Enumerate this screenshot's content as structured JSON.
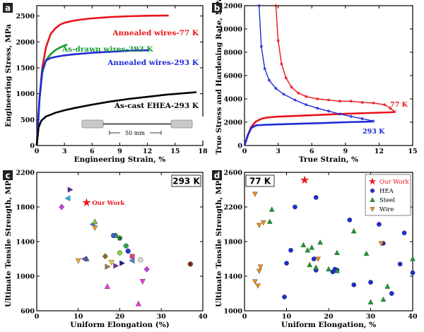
{
  "chart_data": [
    {
      "panel": "a",
      "type": "line",
      "xlabel": "Engineering Strain, %",
      "ylabel": "Engineering Stress, MPa",
      "xlim": [
        0,
        18
      ],
      "ylim": [
        0,
        2700
      ],
      "xticks": [
        0,
        3,
        6,
        9,
        12,
        15,
        18
      ],
      "yticks": [
        0,
        500,
        1000,
        1500,
        2000,
        2500
      ],
      "inset_label": "50 mm",
      "series": [
        {
          "name": "Annealed wires-77 K",
          "color": "#e8131b",
          "x": [
            0,
            0.3,
            0.6,
            1.0,
            1.5,
            2.0,
            2.5,
            3.0,
            4,
            5,
            6,
            8,
            10,
            12,
            14.3
          ],
          "y": [
            0,
            900,
            1500,
            1900,
            2150,
            2260,
            2330,
            2370,
            2410,
            2435,
            2455,
            2480,
            2495,
            2505,
            2510
          ]
        },
        {
          "name": "As-drawn wires-293 K",
          "color": "#169c2d",
          "x": [
            0,
            0.3,
            0.6,
            1.0,
            1.5,
            2.0,
            2.5,
            3.0,
            3.3
          ],
          "y": [
            0,
            900,
            1400,
            1650,
            1760,
            1840,
            1890,
            1930,
            1950
          ]
        },
        {
          "name": "Annealed wires-293 K",
          "color": "#1f2bd6",
          "x": [
            0,
            0.3,
            0.6,
            1.0,
            1.5,
            2.0,
            3.0,
            4,
            6,
            8,
            10,
            12.2
          ],
          "y": [
            0,
            900,
            1450,
            1640,
            1690,
            1710,
            1740,
            1760,
            1790,
            1810,
            1830,
            1840
          ]
        },
        {
          "name": "As-cast EHEA-293 K",
          "color": "#000000",
          "x": [
            0,
            0.2,
            0.5,
            1.0,
            2,
            3,
            4,
            6,
            8,
            10,
            12,
            14,
            16,
            17.3
          ],
          "y": [
            0,
            350,
            480,
            560,
            630,
            680,
            720,
            790,
            850,
            900,
            940,
            980,
            1010,
            1030
          ]
        }
      ]
    },
    {
      "panel": "b",
      "type": "line",
      "xlabel": "True Strain, %",
      "ylabel": "True Stress and Hardening Rate, MPa",
      "xlim": [
        0,
        15
      ],
      "ylim": [
        0,
        12000
      ],
      "xticks": [
        0,
        3,
        6,
        9,
        12,
        15
      ],
      "yticks": [
        0,
        2000,
        4000,
        6000,
        8000,
        10000,
        12000
      ],
      "series": [
        {
          "name": "77 K",
          "kind": "true-stress",
          "color": "#e8131b",
          "x": [
            0,
            0.3,
            0.6,
            1.0,
            1.5,
            2,
            3,
            5,
            7,
            9,
            11,
            13,
            13.4
          ],
          "y": [
            0,
            900,
            1600,
            2050,
            2300,
            2400,
            2480,
            2560,
            2640,
            2720,
            2790,
            2850,
            2870
          ]
        },
        {
          "name": "293 K",
          "kind": "true-stress",
          "color": "#1f2bd6",
          "x": [
            0,
            0.3,
            0.6,
            1.0,
            1.5,
            2,
            3,
            5,
            7,
            9,
            11.5
          ],
          "y": [
            0,
            900,
            1500,
            1720,
            1760,
            1780,
            1810,
            1870,
            1930,
            2000,
            2060
          ]
        },
        {
          "name": "77 K",
          "kind": "hardening-rate",
          "color": "#e8131b",
          "x": [
            2.8,
            3.0,
            3.3,
            3.7,
            4.2,
            4.8,
            5.5,
            6.5,
            7.5,
            8.5,
            9.5,
            10.5,
            11.5,
            12.5,
            13.0,
            13.4
          ],
          "y": [
            12000,
            9000,
            7000,
            5800,
            5000,
            4500,
            4200,
            4000,
            3900,
            3800,
            3800,
            3700,
            3650,
            3500,
            3200,
            2900
          ]
        },
        {
          "name": "293 K",
          "kind": "hardening-rate",
          "color": "#1f2bd6",
          "x": [
            1.3,
            1.5,
            1.8,
            2.2,
            2.8,
            3.5,
            4.5,
            5.5,
            6.5,
            7.5,
            8.5,
            9.5,
            10.5,
            11.5
          ],
          "y": [
            12000,
            8500,
            6600,
            5600,
            4900,
            4400,
            3900,
            3500,
            3200,
            2950,
            2700,
            2500,
            2300,
            2100
          ]
        }
      ]
    },
    {
      "panel": "c",
      "type": "scatter",
      "tag": "293 K",
      "xlabel": "Uniform Elongation (%)",
      "ylabel": "Ultimate Tensile Strength, MPa",
      "xlim": [
        0,
        40
      ],
      "ylim": [
        600,
        2200
      ],
      "xticks": [
        0,
        10,
        20,
        30,
        40
      ],
      "yticks": [
        600,
        1000,
        1400,
        1800,
        2200
      ],
      "highlight": {
        "label": "Our Work",
        "x": 12,
        "y": 1850,
        "color": "#e8131b"
      },
      "points": [
        {
          "x": 8,
          "y": 2000,
          "shape": "tri-right",
          "color": "#5b2ca0"
        },
        {
          "x": 7.5,
          "y": 1900,
          "shape": "tri-left",
          "color": "#26b3e8"
        },
        {
          "x": 6,
          "y": 1800,
          "shape": "diamond",
          "color": "#c83fe0"
        },
        {
          "x": 13.5,
          "y": 1600,
          "shape": "tri-left",
          "color": "#4a7fd8"
        },
        {
          "x": 14,
          "y": 1560,
          "shape": "tri-down",
          "color": "#e89a2a"
        },
        {
          "x": 14,
          "y": 1630,
          "shape": "tri",
          "color": "#8abf3a"
        },
        {
          "x": 19,
          "y": 1470,
          "shape": "pentagon",
          "color": "#36a63a"
        },
        {
          "x": 18.5,
          "y": 1470,
          "shape": "hexagon",
          "color": "#3a5fd8"
        },
        {
          "x": 20,
          "y": 1440,
          "shape": "pentagon",
          "color": "#1f7a2a"
        },
        {
          "x": 21.5,
          "y": 1350,
          "shape": "circle",
          "color": "#2aa84a"
        },
        {
          "x": 20,
          "y": 1270,
          "shape": "circle",
          "color": "#7ad83a"
        },
        {
          "x": 22,
          "y": 1290,
          "shape": "circle",
          "color": "#1f3ad8"
        },
        {
          "x": 16.5,
          "y": 1230,
          "shape": "diamond",
          "color": "#8a6a2a"
        },
        {
          "x": 23,
          "y": 1230,
          "shape": "square",
          "color": "#e83a8a"
        },
        {
          "x": 12,
          "y": 1200,
          "shape": "tri",
          "color": "#2a7f8a"
        },
        {
          "x": 11.5,
          "y": 1200,
          "shape": "tri-left",
          "color": "#6a4ac8"
        },
        {
          "x": 10,
          "y": 1180,
          "shape": "tri-down",
          "color": "#e8a83a"
        },
        {
          "x": 18,
          "y": 1160,
          "shape": "tri-down",
          "color": "#e8c83a"
        },
        {
          "x": 19,
          "y": 1120,
          "shape": "tri-right",
          "color": "#7a2ab0"
        },
        {
          "x": 20.5,
          "y": 1150,
          "shape": "tri-right",
          "color": "#1f1fa0"
        },
        {
          "x": 23,
          "y": 1180,
          "shape": "tri-left",
          "color": "#4a7fd8"
        },
        {
          "x": 25,
          "y": 1190,
          "shape": "circle",
          "color": "#d8d8d8"
        },
        {
          "x": 17,
          "y": 1110,
          "shape": "tri-right",
          "color": "#a07a3a"
        },
        {
          "x": 26.5,
          "y": 1080,
          "shape": "diamond",
          "color": "#c83fe0"
        },
        {
          "x": 17,
          "y": 880,
          "shape": "tri",
          "color": "#e83ae0"
        },
        {
          "x": 25.5,
          "y": 940,
          "shape": "tri-down",
          "color": "#e83ae0"
        },
        {
          "x": 24.5,
          "y": 680,
          "shape": "tri",
          "color": "#e83ae0"
        },
        {
          "x": 37,
          "y": 1140,
          "shape": "circle",
          "color": "#7a2a1a"
        }
      ]
    },
    {
      "panel": "d",
      "type": "scatter",
      "tag": "77 K",
      "xlabel": "Uniform Elongation, %",
      "ylabel": "Ultimate Tensile Strength, MPa",
      "xlim": [
        0,
        40
      ],
      "ylim": [
        1000,
        2600
      ],
      "xticks": [
        0,
        10,
        20,
        30,
        40
      ],
      "yticks": [
        1000,
        1400,
        1800,
        2200,
        2600
      ],
      "legend": [
        {
          "label": "Our Work",
          "shape": "star",
          "color": "#e8131b"
        },
        {
          "label": "HEA",
          "shape": "circle",
          "color": "#1f2bd6"
        },
        {
          "label": "Steel",
          "shape": "tri",
          "color": "#169c2d"
        },
        {
          "label": "Wire",
          "shape": "tri-down",
          "color": "#f08c1e"
        }
      ],
      "legend_position": "top-right",
      "series": [
        {
          "name": "Our Work",
          "shape": "star",
          "color": "#e8131b",
          "x": [
            14.3
          ],
          "y": [
            2510
          ]
        },
        {
          "name": "HEA",
          "shape": "circle",
          "color": "#1f2bd6",
          "x": [
            12,
            17,
            25,
            32,
            38,
            11,
            10,
            9.5,
            21,
            22,
            26,
            30,
            35,
            40,
            37,
            17,
            33,
            21.5,
            16.5
          ],
          "y": [
            2200,
            2310,
            2050,
            2000,
            1900,
            1700,
            1550,
            1160,
            1450,
            1470,
            1300,
            1330,
            1200,
            1440,
            1540,
            1470,
            1780,
            1480,
            1600
          ]
        },
        {
          "name": "Steel",
          "shape": "tri",
          "color": "#169c2d",
          "x": [
            6.5,
            6,
            14,
            16,
            18,
            15,
            15.5,
            20,
            22,
            26,
            29,
            30,
            34,
            33,
            40,
            17,
            22
          ],
          "y": [
            2170,
            2030,
            1760,
            1730,
            1790,
            1700,
            1530,
            1480,
            1670,
            1920,
            1660,
            1100,
            1280,
            1130,
            1600,
            1500,
            1460
          ]
        },
        {
          "name": "Wire",
          "shape": "tri-down",
          "color": "#f08c1e",
          "x": [
            2.5,
            3.5,
            4.5,
            3.8,
            3.5,
            2.5,
            3.2,
            17.5,
            32.5
          ],
          "y": [
            2350,
            1990,
            2020,
            1510,
            1460,
            1340,
            1290,
            1600,
            1780
          ]
        }
      ]
    }
  ],
  "inset_label": "50 mm"
}
